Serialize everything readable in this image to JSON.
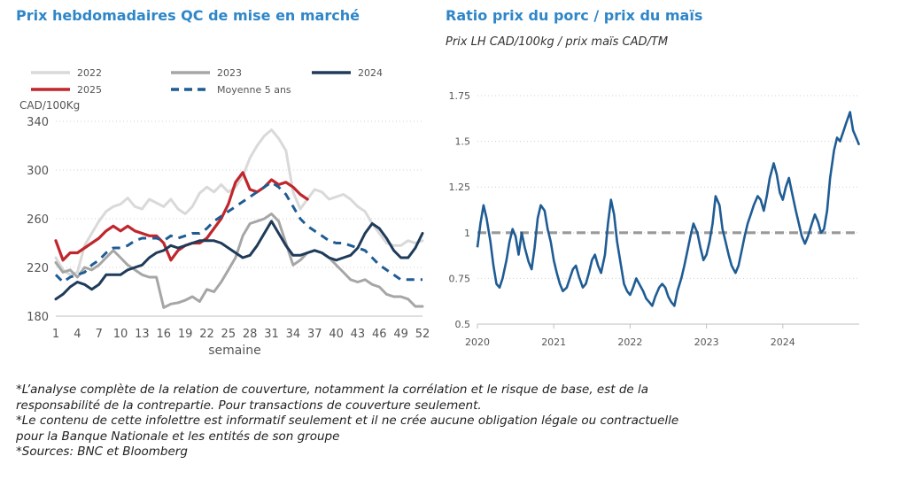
{
  "titles": {
    "left": "Prix hebdomadaires QC de mise en marché",
    "right": "Ratio prix du porc / prix du maïs",
    "right_subtitle": "Prix LH CAD/100kg / prix maïs CAD/TM"
  },
  "notes": [
    "*L’analyse complète de la relation de couverture, notamment la corrélation et le risque de base, est de la",
    "responsabilité de la contrepartie. Pour transactions de couverture seulement.",
    "*Le contenu de cette infolettre est informatif seulement et il ne crée aucune obligation légale ou contractuelle",
    "pour la Banque Nationale et les entités de son groupe",
    "*Sources: BNC et Bloomberg"
  ],
  "chart_data": [
    {
      "type": "line",
      "title": "Prix hebdomadaires QC de mise en marché",
      "xlabel": "semaine",
      "ylabel": "CAD/100Kg",
      "xlim": [
        1,
        52
      ],
      "ylim": [
        180,
        340
      ],
      "xticks": [
        1,
        4,
        7,
        10,
        13,
        16,
        19,
        22,
        25,
        28,
        31,
        34,
        37,
        40,
        43,
        46,
        49,
        52
      ],
      "yticks": [
        180,
        220,
        260,
        300,
        340
      ],
      "grid": "horizontal dotted",
      "legend": "top",
      "series": [
        {
          "name": "2022",
          "color": "#d9d9d9",
          "style": "solid",
          "x": [
            1,
            2,
            3,
            4,
            5,
            6,
            7,
            8,
            9,
            10,
            11,
            12,
            13,
            14,
            15,
            16,
            17,
            18,
            19,
            20,
            21,
            22,
            23,
            24,
            25,
            26,
            27,
            28,
            29,
            30,
            31,
            32,
            33,
            34,
            35,
            36,
            37,
            38,
            39,
            40,
            41,
            42,
            43,
            44,
            45,
            46,
            47,
            48,
            49,
            50,
            51,
            52
          ],
          "values": [
            228,
            218,
            214,
            216,
            238,
            248,
            258,
            266,
            270,
            272,
            277,
            270,
            268,
            276,
            273,
            270,
            276,
            268,
            264,
            270,
            281,
            286,
            282,
            288,
            282,
            286,
            295,
            310,
            320,
            328,
            333,
            326,
            316,
            282,
            268,
            276,
            284,
            282,
            276,
            278,
            280,
            276,
            270,
            266,
            256,
            248,
            240,
            238,
            238,
            242,
            240,
            242
          ]
        },
        {
          "name": "2023",
          "color": "#a6a6a6",
          "style": "solid",
          "x": [
            1,
            2,
            3,
            4,
            5,
            6,
            7,
            8,
            9,
            10,
            11,
            12,
            13,
            14,
            15,
            16,
            17,
            18,
            19,
            20,
            21,
            22,
            23,
            24,
            25,
            26,
            27,
            28,
            29,
            30,
            31,
            32,
            33,
            34,
            35,
            36,
            37,
            38,
            39,
            40,
            41,
            42,
            43,
            44,
            45,
            46,
            47,
            48,
            49,
            50,
            51,
            52
          ],
          "values": [
            224,
            216,
            218,
            212,
            220,
            218,
            222,
            228,
            234,
            228,
            222,
            218,
            214,
            212,
            212,
            187,
            190,
            191,
            193,
            196,
            192,
            202,
            200,
            208,
            218,
            228,
            246,
            256,
            258,
            260,
            264,
            258,
            240,
            222,
            226,
            232,
            234,
            232,
            228,
            222,
            216,
            210,
            208,
            210,
            206,
            204,
            198,
            196,
            196,
            194,
            188,
            188
          ]
        },
        {
          "name": "2024",
          "color": "#1f3b5a",
          "style": "solid",
          "x": [
            1,
            2,
            3,
            4,
            5,
            6,
            7,
            8,
            9,
            10,
            11,
            12,
            13,
            14,
            15,
            16,
            17,
            18,
            19,
            20,
            21,
            22,
            23,
            24,
            25,
            26,
            27,
            28,
            29,
            30,
            31,
            32,
            33,
            34,
            35,
            36,
            37,
            38,
            39,
            40,
            41,
            42,
            43,
            44,
            45,
            46,
            47,
            48,
            49,
            50,
            51,
            52
          ],
          "values": [
            194,
            198,
            204,
            208,
            206,
            202,
            206,
            214,
            214,
            214,
            218,
            220,
            222,
            228,
            232,
            234,
            238,
            236,
            238,
            240,
            242,
            242,
            242,
            240,
            236,
            232,
            228,
            230,
            238,
            248,
            258,
            248,
            238,
            230,
            230,
            232,
            234,
            232,
            228,
            226,
            228,
            230,
            236,
            248,
            256,
            252,
            244,
            234,
            228,
            228,
            236,
            248
          ]
        },
        {
          "name": "2025",
          "color": "#c0262d",
          "style": "solid",
          "x": [
            1,
            2,
            3,
            4,
            5,
            6,
            7,
            8,
            9,
            10,
            11,
            12,
            13,
            14,
            15,
            16,
            17,
            18,
            19,
            20,
            21,
            22,
            23,
            24,
            25,
            26,
            27,
            28,
            29,
            30,
            31,
            32,
            33,
            34,
            35,
            36
          ],
          "values": [
            242,
            226,
            232,
            232,
            236,
            240,
            244,
            250,
            254,
            250,
            254,
            250,
            248,
            246,
            246,
            240,
            226,
            234,
            238,
            240,
            240,
            244,
            252,
            260,
            272,
            290,
            298,
            284,
            282,
            286,
            292,
            288,
            290,
            286,
            280,
            276
          ]
        },
        {
          "name": "Moyenne 5 ans",
          "color": "#1f5c94",
          "style": "dashed",
          "x": [
            1,
            2,
            3,
            4,
            5,
            6,
            7,
            8,
            9,
            10,
            11,
            12,
            13,
            14,
            15,
            16,
            17,
            18,
            19,
            20,
            21,
            22,
            23,
            24,
            25,
            26,
            27,
            28,
            29,
            30,
            31,
            32,
            33,
            34,
            35,
            36,
            37,
            38,
            39,
            40,
            41,
            42,
            43,
            44,
            45,
            46,
            47,
            48,
            49,
            50,
            51,
            52
          ],
          "values": [
            214,
            208,
            212,
            214,
            216,
            222,
            226,
            232,
            236,
            236,
            238,
            242,
            244,
            244,
            244,
            242,
            246,
            244,
            246,
            248,
            248,
            252,
            258,
            262,
            266,
            270,
            274,
            278,
            282,
            286,
            290,
            286,
            280,
            270,
            260,
            254,
            250,
            246,
            242,
            240,
            240,
            238,
            236,
            234,
            228,
            222,
            218,
            214,
            210,
            210,
            210,
            210
          ]
        }
      ]
    },
    {
      "type": "line",
      "title": "Ratio prix du porc / prix du maïs",
      "subtitle": "Prix LH CAD/100kg / prix maïs CAD/TM",
      "xlim": [
        "2020-01",
        "2024-12"
      ],
      "ylim": [
        0.5,
        1.75
      ],
      "xticks": [
        "2020",
        "2021",
        "2022",
        "2023",
        "2024"
      ],
      "yticks": [
        0.5,
        0.75,
        1,
        1.25,
        1.5,
        1.75
      ],
      "grid": "horizontal dotted",
      "reference_line": {
        "value": 1,
        "color": "#999999",
        "style": "dashed"
      },
      "series": [
        {
          "name": "",
          "color": "#1f5c94",
          "x": [
            2020.0,
            2020.04,
            2020.08,
            2020.12,
            2020.17,
            2020.21,
            2020.25,
            2020.29,
            2020.33,
            2020.38,
            2020.42,
            2020.46,
            2020.5,
            2020.54,
            2020.58,
            2020.62,
            2020.67,
            2020.71,
            2020.75,
            2020.79,
            2020.83,
            2020.88,
            2020.92,
            2020.96,
            2021.0,
            2021.04,
            2021.08,
            2021.12,
            2021.17,
            2021.21,
            2021.25,
            2021.29,
            2021.33,
            2021.38,
            2021.42,
            2021.46,
            2021.5,
            2021.54,
            2021.58,
            2021.62,
            2021.67,
            2021.71,
            2021.75,
            2021.79,
            2021.83,
            2021.88,
            2021.92,
            2021.96,
            2022.0,
            2022.04,
            2022.08,
            2022.12,
            2022.17,
            2022.21,
            2022.25,
            2022.29,
            2022.33,
            2022.38,
            2022.42,
            2022.46,
            2022.5,
            2022.54,
            2022.58,
            2022.62,
            2022.67,
            2022.71,
            2022.75,
            2022.79,
            2022.83,
            2022.88,
            2022.92,
            2022.96,
            2023.0,
            2023.04,
            2023.08,
            2023.12,
            2023.17,
            2023.21,
            2023.25,
            2023.29,
            2023.33,
            2023.38,
            2023.42,
            2023.46,
            2023.5,
            2023.54,
            2023.58,
            2023.62,
            2023.67,
            2023.71,
            2023.75,
            2023.79,
            2023.83,
            2023.88,
            2023.92,
            2023.96,
            2024.0,
            2024.04,
            2024.08,
            2024.12,
            2024.17,
            2024.21,
            2024.25,
            2024.29,
            2024.33,
            2024.38,
            2024.42,
            2024.46,
            2024.5,
            2024.54,
            2024.58,
            2024.62,
            2024.67,
            2024.71,
            2024.75,
            2024.79,
            2024.83,
            2024.88,
            2024.92,
            2024.96,
            2025.0
          ],
          "values": [
            0.92,
            1.05,
            1.15,
            1.08,
            0.95,
            0.82,
            0.72,
            0.7,
            0.75,
            0.85,
            0.95,
            1.02,
            0.98,
            0.88,
            1.0,
            0.92,
            0.84,
            0.8,
            0.92,
            1.08,
            1.15,
            1.12,
            1.02,
            0.95,
            0.85,
            0.78,
            0.72,
            0.68,
            0.7,
            0.75,
            0.8,
            0.82,
            0.76,
            0.7,
            0.72,
            0.78,
            0.85,
            0.88,
            0.82,
            0.78,
            0.88,
            1.05,
            1.18,
            1.1,
            0.95,
            0.82,
            0.72,
            0.68,
            0.66,
            0.7,
            0.75,
            0.72,
            0.68,
            0.64,
            0.62,
            0.6,
            0.65,
            0.7,
            0.72,
            0.7,
            0.65,
            0.62,
            0.6,
            0.68,
            0.75,
            0.82,
            0.9,
            0.98,
            1.05,
            1.0,
            0.92,
            0.85,
            0.88,
            0.95,
            1.05,
            1.2,
            1.15,
            1.02,
            0.95,
            0.88,
            0.82,
            0.78,
            0.82,
            0.9,
            0.98,
            1.05,
            1.1,
            1.15,
            1.2,
            1.18,
            1.12,
            1.2,
            1.3,
            1.38,
            1.32,
            1.22,
            1.18,
            1.25,
            1.3,
            1.22,
            1.12,
            1.05,
            0.98,
            0.94,
            0.98,
            1.05,
            1.1,
            1.06,
            1.0,
            1.02,
            1.12,
            1.3,
            1.45,
            1.52,
            1.5,
            1.55,
            1.6,
            1.66,
            1.56,
            1.52,
            1.48
          ]
        }
      ]
    }
  ]
}
